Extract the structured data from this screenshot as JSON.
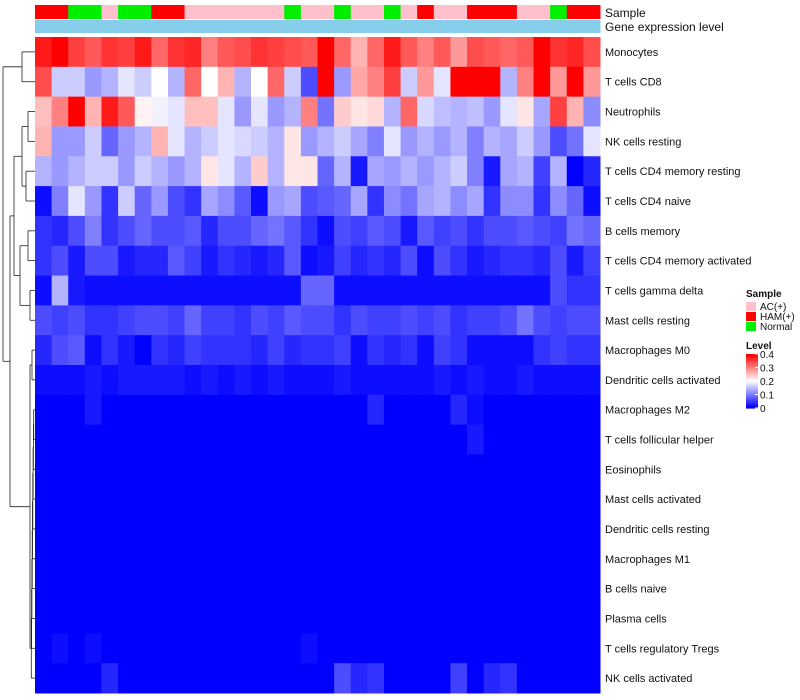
{
  "chart_data": {
    "type": "heatmap",
    "annotation_tracks": [
      "Sample",
      "Gene expression level"
    ],
    "rows": [
      "Monocytes",
      "T cells CD8",
      "Neutrophils",
      "NK cells resting",
      "T cells CD4 memory resting",
      "T cells CD4 naive",
      "B cells memory",
      "T cells CD4 memory activated",
      "T cells gamma delta",
      "Mast cells resting",
      "Macrophages M0",
      "Dendritic cells activated",
      "Macrophages M2",
      "T cells follicular helper",
      "Eosinophils",
      "Mast cells activated",
      "Dendritic cells resting",
      "Macrophages M1",
      "B cells naive",
      "Plasma cells",
      "T cells regulatory  Tregs",
      "NK cells activated"
    ],
    "n_columns": 34,
    "sample_groups": [
      "HAM(+)",
      "HAM(+)",
      "Normal",
      "Normal",
      "AC(+)",
      "Normal",
      "Normal",
      "HAM(+)",
      "HAM(+)",
      "AC(+)",
      "AC(+)",
      "AC(+)",
      "AC(+)",
      "AC(+)",
      "AC(+)",
      "Normal",
      "AC(+)",
      "AC(+)",
      "Normal",
      "AC(+)",
      "AC(+)",
      "Normal",
      "AC(+)",
      "HAM(+)",
      "AC(+)",
      "AC(+)",
      "HAM(+)",
      "HAM(+)",
      "HAM(+)",
      "AC(+)",
      "AC(+)",
      "Normal",
      "HAM(+)",
      "HAM(+)"
    ],
    "value_range": [
      0,
      0.4
    ],
    "values": [
      [
        0.38,
        0.42,
        0.35,
        0.33,
        0.36,
        0.35,
        0.38,
        0.32,
        0.36,
        0.37,
        0.3,
        0.33,
        0.34,
        0.36,
        0.35,
        0.34,
        0.33,
        0.4,
        0.32,
        0.26,
        0.32,
        0.38,
        0.33,
        0.3,
        0.33,
        0.28,
        0.34,
        0.33,
        0.32,
        0.33,
        0.4,
        0.36,
        0.37,
        0.34
      ],
      [
        0.34,
        0.16,
        0.16,
        0.12,
        0.14,
        0.18,
        0.16,
        0.2,
        0.14,
        0.32,
        0.2,
        0.26,
        0.14,
        0.2,
        0.32,
        0.16,
        0.06,
        0.42,
        0.12,
        0.27,
        0.3,
        0.35,
        0.16,
        0.28,
        0.18,
        0.42,
        0.4,
        0.42,
        0.14,
        0.3,
        0.42,
        0.28,
        0.4,
        0.28
      ],
      [
        0.25,
        0.3,
        0.4,
        0.26,
        0.38,
        0.33,
        0.21,
        0.19,
        0.18,
        0.25,
        0.25,
        0.18,
        0.12,
        0.18,
        0.12,
        0.14,
        0.3,
        0.09,
        0.24,
        0.22,
        0.23,
        0.14,
        0.32,
        0.17,
        0.15,
        0.14,
        0.15,
        0.12,
        0.18,
        0.22,
        0.13,
        0.35,
        0.26,
        0.11
      ],
      [
        0.26,
        0.12,
        0.12,
        0.16,
        0.08,
        0.12,
        0.14,
        0.26,
        0.18,
        0.14,
        0.16,
        0.18,
        0.17,
        0.16,
        0.14,
        0.22,
        0.12,
        0.14,
        0.16,
        0.13,
        0.1,
        0.18,
        0.12,
        0.14,
        0.12,
        0.14,
        0.1,
        0.14,
        0.13,
        0.16,
        0.12,
        0.06,
        0.09,
        0.18
      ],
      [
        0.14,
        0.12,
        0.14,
        0.16,
        0.16,
        0.12,
        0.16,
        0.14,
        0.12,
        0.14,
        0.22,
        0.18,
        0.14,
        0.24,
        0.14,
        0.22,
        0.22,
        0.08,
        0.14,
        0.02,
        0.13,
        0.12,
        0.14,
        0.12,
        0.14,
        0.16,
        0.1,
        0.02,
        0.13,
        0.14,
        0.05,
        0.14,
        0.0,
        0.03
      ],
      [
        0.01,
        0.1,
        0.18,
        0.12,
        0.04,
        0.16,
        0.08,
        0.12,
        0.06,
        0.04,
        0.13,
        0.11,
        0.07,
        0.01,
        0.12,
        0.13,
        0.06,
        0.07,
        0.08,
        0.13,
        0.04,
        0.11,
        0.09,
        0.13,
        0.14,
        0.11,
        0.13,
        0.04,
        0.11,
        0.11,
        0.04,
        0.11,
        0.08,
        0.01
      ],
      [
        0.04,
        0.03,
        0.06,
        0.1,
        0.04,
        0.06,
        0.08,
        0.06,
        0.06,
        0.07,
        0.03,
        0.06,
        0.06,
        0.08,
        0.09,
        0.07,
        0.04,
        0.01,
        0.06,
        0.05,
        0.07,
        0.06,
        0.02,
        0.07,
        0.05,
        0.06,
        0.04,
        0.06,
        0.06,
        0.07,
        0.06,
        0.05,
        0.09,
        0.08
      ],
      [
        0.04,
        0.06,
        0.02,
        0.06,
        0.06,
        0.02,
        0.03,
        0.03,
        0.07,
        0.05,
        0.02,
        0.04,
        0.03,
        0.02,
        0.03,
        0.07,
        0.01,
        0.02,
        0.05,
        0.03,
        0.04,
        0.03,
        0.06,
        0.01,
        0.06,
        0.04,
        0.02,
        0.03,
        0.04,
        0.04,
        0.03,
        0.06,
        0.02,
        0.05
      ],
      [
        0.01,
        0.14,
        0.02,
        0.01,
        0.01,
        0.01,
        0.01,
        0.01,
        0.01,
        0.01,
        0.01,
        0.01,
        0.01,
        0.01,
        0.01,
        0.01,
        0.08,
        0.08,
        0.01,
        0.01,
        0.01,
        0.01,
        0.01,
        0.01,
        0.01,
        0.01,
        0.01,
        0.01,
        0.01,
        0.01,
        0.01,
        0.06,
        0.04,
        0.04
      ],
      [
        0.06,
        0.05,
        0.06,
        0.04,
        0.04,
        0.05,
        0.06,
        0.06,
        0.05,
        0.08,
        0.05,
        0.05,
        0.04,
        0.06,
        0.05,
        0.07,
        0.06,
        0.06,
        0.04,
        0.06,
        0.05,
        0.05,
        0.06,
        0.05,
        0.06,
        0.04,
        0.05,
        0.05,
        0.06,
        0.09,
        0.06,
        0.05,
        0.06,
        0.06
      ],
      [
        0.03,
        0.06,
        0.07,
        0.01,
        0.04,
        0.02,
        0.0,
        0.04,
        0.03,
        0.05,
        0.04,
        0.04,
        0.04,
        0.03,
        0.05,
        0.03,
        0.04,
        0.04,
        0.05,
        0.01,
        0.04,
        0.03,
        0.04,
        0.01,
        0.05,
        0.04,
        0.01,
        0.01,
        0.01,
        0.01,
        0.04,
        0.05,
        0.04,
        0.04
      ],
      [
        0.01,
        0.01,
        0.01,
        0.02,
        0.01,
        0.02,
        0.02,
        0.02,
        0.02,
        0.01,
        0.02,
        0.01,
        0.02,
        0.01,
        0.02,
        0.01,
        0.01,
        0.01,
        0.02,
        0.01,
        0.01,
        0.01,
        0.01,
        0.01,
        0.02,
        0.01,
        0.02,
        0.01,
        0.01,
        0.02,
        0.01,
        0.01,
        0.01,
        0.01
      ],
      [
        0.0,
        0.0,
        0.0,
        0.02,
        0.0,
        0.0,
        0.0,
        0.0,
        0.0,
        0.0,
        0.0,
        0.0,
        0.0,
        0.0,
        0.0,
        0.0,
        0.0,
        0.0,
        0.0,
        0.0,
        0.03,
        0.0,
        0.0,
        0.0,
        0.0,
        0.03,
        0.01,
        0.0,
        0.0,
        0.0,
        0.0,
        0.0,
        0.0,
        0.0
      ],
      [
        0.0,
        0.0,
        0.0,
        0.0,
        0.0,
        0.0,
        0.0,
        0.0,
        0.0,
        0.0,
        0.0,
        0.0,
        0.0,
        0.0,
        0.0,
        0.0,
        0.0,
        0.0,
        0.0,
        0.0,
        0.0,
        0.0,
        0.0,
        0.0,
        0.0,
        0.0,
        0.02,
        0.0,
        0.0,
        0.0,
        0.0,
        0.0,
        0.0,
        0.0
      ],
      [
        0.0,
        0.0,
        0.0,
        0.0,
        0.0,
        0.0,
        0.0,
        0.0,
        0.0,
        0.0,
        0.0,
        0.0,
        0.0,
        0.0,
        0.0,
        0.0,
        0.0,
        0.0,
        0.0,
        0.0,
        0.0,
        0.0,
        0.0,
        0.0,
        0.0,
        0.0,
        0.0,
        0.0,
        0.0,
        0.0,
        0.0,
        0.0,
        0.0,
        0.0
      ],
      [
        0.0,
        0.0,
        0.0,
        0.0,
        0.0,
        0.0,
        0.0,
        0.0,
        0.0,
        0.0,
        0.0,
        0.0,
        0.0,
        0.0,
        0.0,
        0.0,
        0.0,
        0.0,
        0.0,
        0.0,
        0.0,
        0.0,
        0.0,
        0.0,
        0.0,
        0.0,
        0.0,
        0.0,
        0.0,
        0.0,
        0.0,
        0.0,
        0.0,
        0.0
      ],
      [
        0.0,
        0.0,
        0.0,
        0.0,
        0.0,
        0.0,
        0.0,
        0.0,
        0.0,
        0.0,
        0.0,
        0.0,
        0.0,
        0.0,
        0.0,
        0.0,
        0.0,
        0.0,
        0.0,
        0.0,
        0.0,
        0.0,
        0.0,
        0.0,
        0.0,
        0.0,
        0.0,
        0.0,
        0.0,
        0.0,
        0.0,
        0.0,
        0.0,
        0.0
      ],
      [
        0.0,
        0.0,
        0.0,
        0.0,
        0.0,
        0.0,
        0.0,
        0.0,
        0.0,
        0.0,
        0.0,
        0.0,
        0.0,
        0.0,
        0.0,
        0.0,
        0.0,
        0.0,
        0.0,
        0.0,
        0.0,
        0.0,
        0.0,
        0.0,
        0.0,
        0.0,
        0.0,
        0.0,
        0.0,
        0.0,
        0.0,
        0.0,
        0.0,
        0.0
      ],
      [
        0.0,
        0.0,
        0.0,
        0.0,
        0.0,
        0.0,
        0.0,
        0.0,
        0.0,
        0.0,
        0.0,
        0.0,
        0.0,
        0.0,
        0.0,
        0.0,
        0.0,
        0.0,
        0.0,
        0.0,
        0.0,
        0.0,
        0.0,
        0.0,
        0.0,
        0.0,
        0.0,
        0.0,
        0.0,
        0.0,
        0.0,
        0.0,
        0.0,
        0.0
      ],
      [
        0.0,
        0.0,
        0.0,
        0.0,
        0.0,
        0.0,
        0.0,
        0.0,
        0.0,
        0.0,
        0.0,
        0.0,
        0.0,
        0.0,
        0.0,
        0.0,
        0.0,
        0.0,
        0.0,
        0.0,
        0.0,
        0.0,
        0.0,
        0.0,
        0.0,
        0.0,
        0.0,
        0.0,
        0.0,
        0.0,
        0.0,
        0.0,
        0.0,
        0.0
      ],
      [
        0.0,
        0.01,
        0.0,
        0.01,
        0.0,
        0.0,
        0.0,
        0.0,
        0.0,
        0.0,
        0.0,
        0.0,
        0.0,
        0.0,
        0.0,
        0.0,
        0.01,
        0.0,
        0.0,
        0.0,
        0.0,
        0.0,
        0.0,
        0.0,
        0.0,
        0.0,
        0.0,
        0.0,
        0.0,
        0.0,
        0.0,
        0.0,
        0.0,
        0.0
      ],
      [
        0.0,
        0.0,
        0.0,
        0.0,
        0.03,
        0.0,
        0.0,
        0.0,
        0.0,
        0.0,
        0.0,
        0.0,
        0.0,
        0.0,
        0.0,
        0.0,
        0.0,
        0.0,
        0.06,
        0.03,
        0.04,
        0.0,
        0.0,
        0.0,
        0.0,
        0.05,
        0.0,
        0.03,
        0.04,
        0.0,
        0.0,
        0.0,
        0.0,
        0.0
      ]
    ],
    "legend": {
      "sample_title": "Sample",
      "sample_entries": [
        {
          "label": "AC(+)",
          "color": "#FFC0CB"
        },
        {
          "label": "HAM(+)",
          "color": "#FF0000"
        },
        {
          "label": "Normal",
          "color": "#00EE00"
        }
      ],
      "level_title": "Level",
      "level_ticks": [
        "0.4",
        "0.3",
        "0.2",
        "0.1",
        "0"
      ],
      "level_tick_values": [
        0.4,
        0.3,
        0.2,
        0.1,
        0.0
      ]
    },
    "colors": {
      "low": "#0000FF",
      "mid": "#FFFFFF",
      "high": "#FF0000",
      "expression_track": "#87CEEB"
    }
  }
}
